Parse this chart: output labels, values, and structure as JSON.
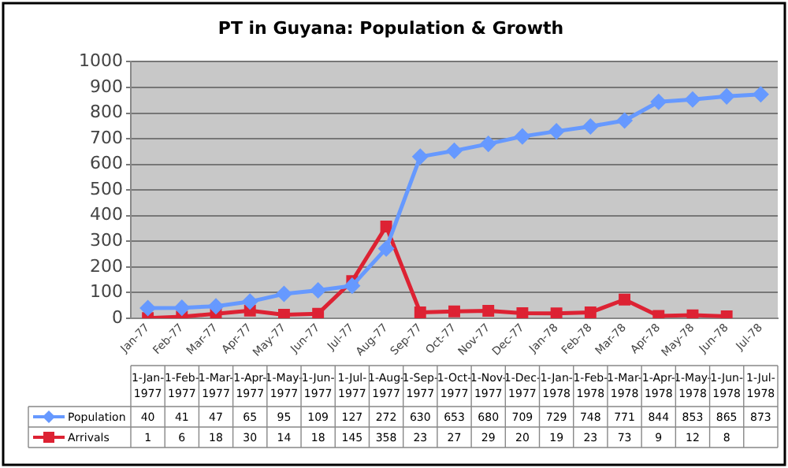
{
  "chart_data": {
    "type": "line",
    "title": "PT in Guyana: Population & Growth",
    "categories": [
      "Jan-77",
      "Feb-77",
      "Mar-77",
      "Apr-77",
      "May-77",
      "Jun-77",
      "Jul-77",
      "Aug-77",
      "Sep-77",
      "Oct-77",
      "Nov-77",
      "Dec-77",
      "Jan-78",
      "Feb-78",
      "Mar-78",
      "Apr-78",
      "May-78",
      "Jun-78",
      "Jul-78"
    ],
    "series": [
      {
        "name": "Population",
        "color": "#6699ff",
        "marker": "diamond",
        "values": [
          40,
          41,
          47,
          65,
          95,
          109,
          127,
          272,
          630,
          653,
          680,
          709,
          729,
          748,
          771,
          844,
          853,
          865,
          873
        ]
      },
      {
        "name": "Arrivals",
        "color": "#dd2233",
        "marker": "square",
        "values": [
          1,
          6,
          18,
          30,
          14,
          18,
          145,
          358,
          23,
          27,
          29,
          20,
          19,
          23,
          73,
          9,
          12,
          8,
          null
        ]
      }
    ],
    "annotations": [
      "1-Jan-1977",
      "1-Feb-1977",
      "1-Mar-1977",
      "1-Apr-1977",
      "1-May-1977",
      "1-Jun-1977",
      "1-Jul-1977",
      "1-Aug-1977",
      "1-Sep-1977",
      "1-Oct-1977",
      "1-Nov-1977",
      "1-Dec-1977",
      "1-Jan-1978",
      "1-Feb-1978",
      "1-Mar-1978",
      "1-Apr-1978",
      "1-May-1978",
      "1-Jun-1978",
      "1-Jul-1978"
    ],
    "ylim": [
      0,
      1000
    ],
    "yticks": [
      0,
      100,
      200,
      300,
      400,
      500,
      600,
      700,
      800,
      900,
      1000
    ],
    "grid": "y",
    "legend": "bottom",
    "data_labels": true
  }
}
